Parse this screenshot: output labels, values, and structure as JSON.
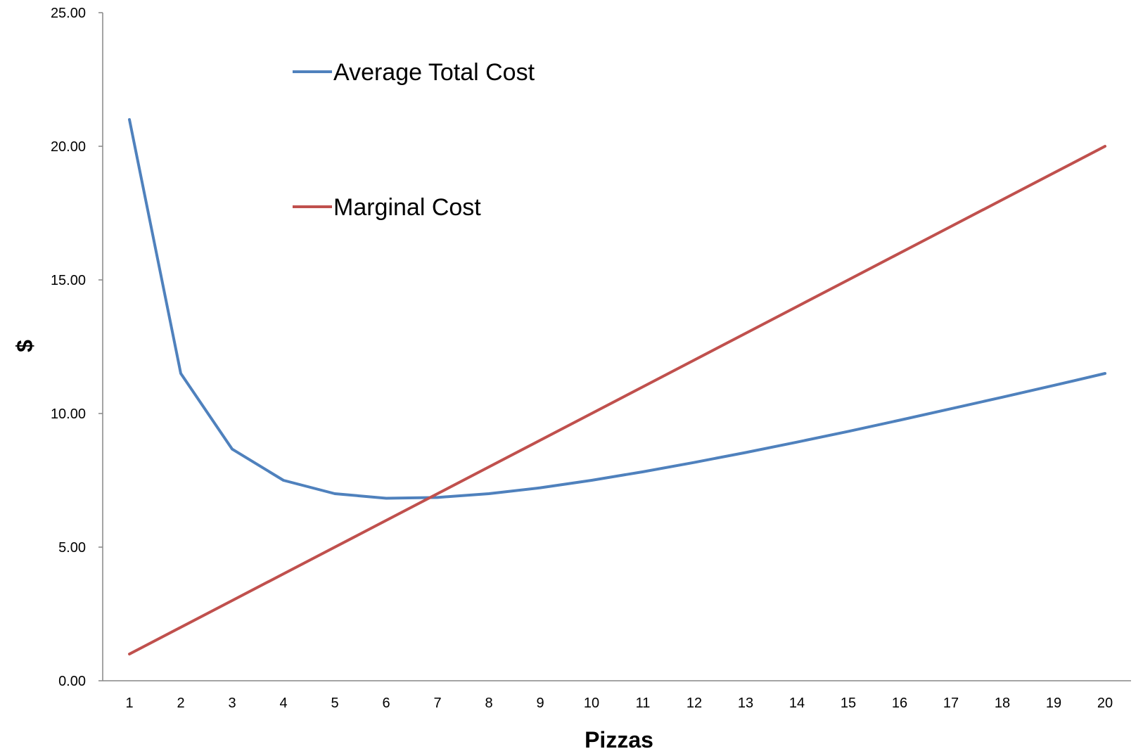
{
  "chart_data": {
    "type": "line",
    "title": "",
    "xlabel": "Pizzas",
    "ylabel": "$",
    "x": [
      1,
      2,
      3,
      4,
      5,
      6,
      7,
      8,
      9,
      10,
      11,
      12,
      13,
      14,
      15,
      16,
      17,
      18,
      19,
      20
    ],
    "ylim": [
      0,
      25
    ],
    "yticks": [
      "0.00",
      "5.00",
      "10.00",
      "15.00",
      "20.00",
      "25.00"
    ],
    "xticks": [
      "1",
      "2",
      "3",
      "4",
      "5",
      "6",
      "7",
      "8",
      "9",
      "10",
      "11",
      "12",
      "13",
      "14",
      "15",
      "16",
      "17",
      "18",
      "19",
      "20"
    ],
    "grid": false,
    "legend_placement": "upper-left inside plot",
    "series": [
      {
        "name": "Average Total Cost",
        "color": "#4F81BD",
        "values": [
          21.0,
          11.5,
          8.67,
          7.5,
          7.0,
          6.83,
          6.86,
          7.0,
          7.22,
          7.5,
          7.82,
          8.17,
          8.54,
          8.93,
          9.33,
          9.75,
          10.18,
          10.61,
          11.05,
          11.5
        ]
      },
      {
        "name": "Marginal Cost",
        "color": "#C0504D",
        "values": [
          1,
          2,
          3,
          4,
          5,
          6,
          7,
          8,
          9,
          10,
          11,
          12,
          13,
          14,
          15,
          16,
          17,
          18,
          19,
          20
        ]
      }
    ]
  }
}
